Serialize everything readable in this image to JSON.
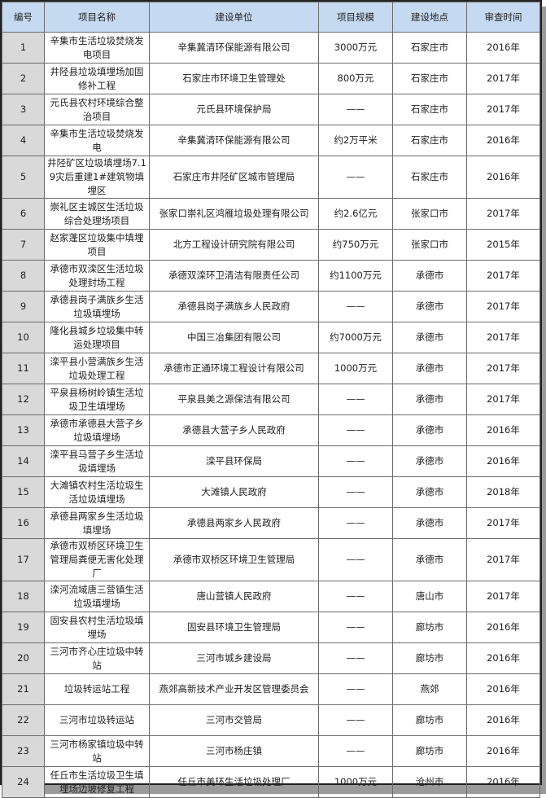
{
  "header": [
    "编号",
    "项目名称",
    "建设单位",
    "项目规模",
    "建设地点",
    "审查时间"
  ],
  "rows": [
    [
      "1",
      "辛集市生活垃圾焚烧发电项目",
      "辛集冀清环保能源有限公司",
      "3000万元",
      "石家庄市",
      "2016年"
    ],
    [
      "2",
      "井陉县垃圾填埋场加固修补工程",
      "石家庄市环境卫生管理处",
      "800万元",
      "石家庄市",
      "2017年"
    ],
    [
      "3",
      "元氏县农村环境综合整治项目",
      "元氏县环境保护局",
      "——",
      "石家庄市",
      "2017年"
    ],
    [
      "4",
      "辛集市生活垃圾焚烧发电",
      "辛集冀清环保能源有限公司",
      "约2万平米",
      "石家庄市",
      "2016年"
    ],
    [
      "5",
      "井陉矿区垃圾填埋场7.19灾后重建1#建筑物填埋区",
      "石家庄市井陉矿区城市管理局",
      "——",
      "石家庄市",
      "2016年"
    ],
    [
      "6",
      "崇礼区主城区生活垃圾综合处理场项目",
      "张家口崇礼区鸿雁垃圾处理有限公司",
      "约2.6亿元",
      "张家口市",
      "2017年"
    ],
    [
      "7",
      "赵家蓬区垃圾集中填埋项目",
      "北方工程设计研究院有限公司",
      "约750万元",
      "张家口市",
      "2015年"
    ],
    [
      "8",
      "承德市双滦区生活垃圾处理封场工程",
      "承德双滦环卫清洁有限责任公司",
      "约1100万元",
      "承德市",
      "2017年"
    ],
    [
      "9",
      "承德县岗子满族乡生活垃圾填埋场",
      "承德县岗子满族乡人民政府",
      "——",
      "承德市",
      "2017年"
    ],
    [
      "10",
      "隆化县城乡垃圾集中转运处理项目",
      "中国三冶集团有限公司",
      "约7000万元",
      "承德市",
      "2017年"
    ],
    [
      "11",
      "滦平县小营满族乡生活垃圾处理工程",
      "承德市正通环境工程设计有限公司",
      "1000万元",
      "承德市",
      "2017年"
    ],
    [
      "12",
      "平泉县杨树岭镇生活垃圾卫生填埋场",
      "平泉县美之源保洁有限公司",
      "——",
      "承德市",
      "2017年"
    ],
    [
      "13",
      "承德市承德县大营子乡垃圾填埋场",
      "承德县大营子乡人民政府",
      "——",
      "承德市",
      "2016年"
    ],
    [
      "14",
      "滦平县马营子乡生活垃圾填埋场",
      "滦平县环保局",
      "——",
      "承德市",
      "2016年"
    ],
    [
      "15",
      "大滩镇农村生活垃圾生活垃圾填埋场",
      "大滩镇人民政府",
      "——",
      "承德市",
      "2018年"
    ],
    [
      "16",
      "承德县两家乡生活垃圾填埋场",
      "承德县两家乡人民政府",
      "——",
      "承德市",
      "2017年"
    ],
    [
      "17",
      "承德市双桥区环境卫生管理局粪便无害化处理厂",
      "承德市双桥区环境卫生管理局",
      "——",
      "承德市",
      "2017年"
    ],
    [
      "18",
      "滦河流域唐三营镇生活垃圾填埋场",
      "唐山营镇人民政府",
      "——",
      "唐山市",
      "2017年"
    ],
    [
      "19",
      "固安县农村生活垃圾填埋场",
      "固安县环境卫生管理局",
      "——",
      "廊坊市",
      "2016年"
    ],
    [
      "20",
      "三河市齐心庄垃圾中转站",
      "三河市城乡建设局",
      "——",
      "廊坊市",
      "2016年"
    ],
    [
      "21",
      "垃圾转运站工程",
      "燕郊高新技术产业开发区管理委员会",
      "——",
      "燕郊",
      "2016年"
    ],
    [
      "22",
      "三河市垃圾转运站",
      "三河市交管局",
      "——",
      "廊坊市",
      "2016年"
    ],
    [
      "23",
      "三河市杨家镇垃圾中转站",
      "三河市杨庄镇",
      "——",
      "廊坊市",
      "2016年"
    ],
    [
      "24",
      "任丘市生活垃圾卫生填埋场边坡修复工程",
      "任丘市美环生活垃圾处理厂",
      "1000万元",
      "沧州市",
      "2016年"
    ]
  ],
  "colors": {
    "header_bg": "#c5d9f1",
    "index_bg": "#d9d9d9",
    "border": "#222222"
  }
}
